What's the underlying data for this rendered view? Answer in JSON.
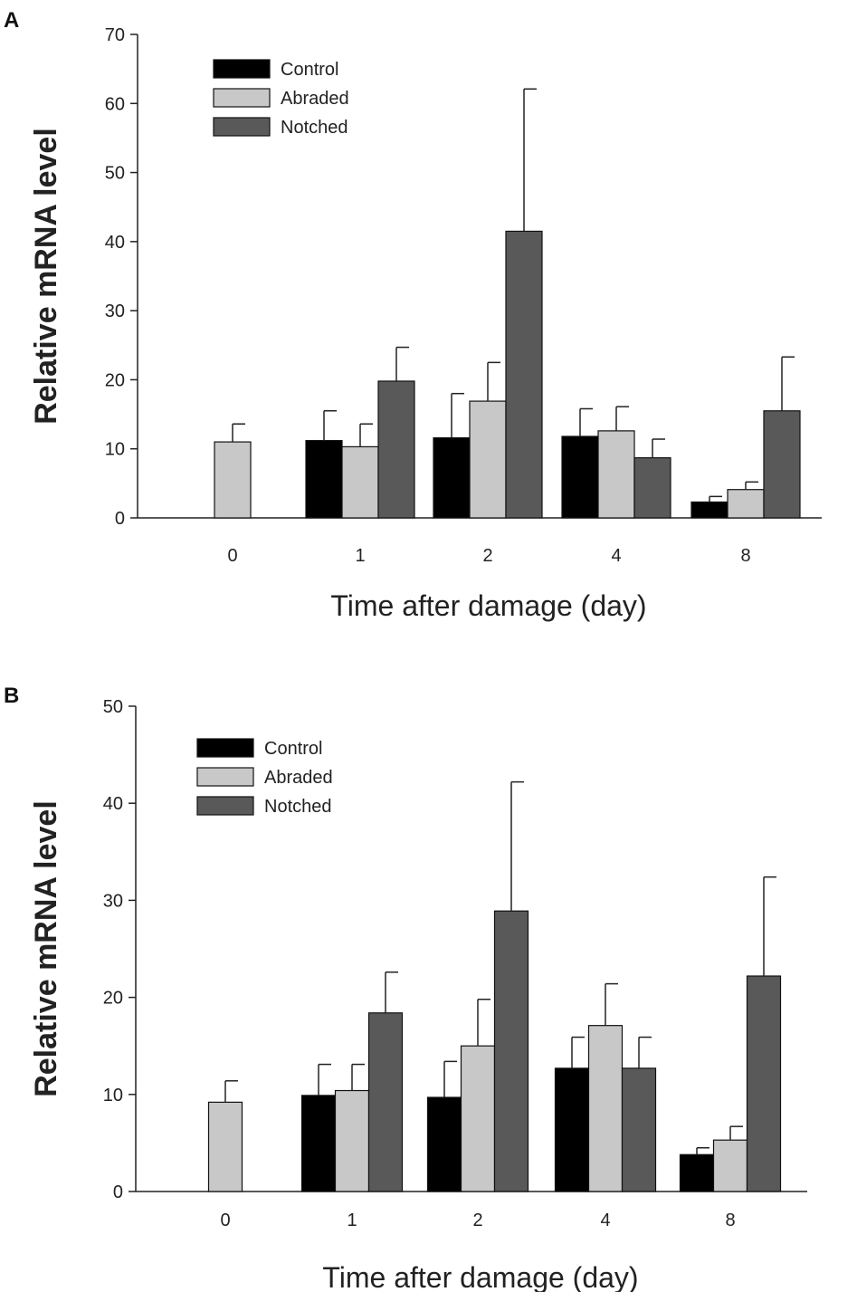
{
  "chart_data": [
    {
      "panel": "A",
      "type": "bar",
      "categories": [
        "0",
        "1",
        "2",
        "4",
        "8"
      ],
      "xlabel": "Time after damage (day)",
      "ylabel": "Relative mRNA level",
      "ylim": [
        0,
        70
      ],
      "yticks": [
        0,
        10,
        20,
        30,
        40,
        50,
        60,
        70
      ],
      "legend_position": "top-left",
      "series": [
        {
          "name": "Control",
          "color": "#000000",
          "values": [
            null,
            11.2,
            11.6,
            11.8,
            2.3
          ],
          "errors": [
            null,
            4.3,
            6.4,
            4.0,
            0.8
          ]
        },
        {
          "name": "Abraded",
          "color": "#c8c8c8",
          "values": [
            11.0,
            10.3,
            16.9,
            12.6,
            4.1
          ],
          "errors": [
            2.6,
            3.3,
            5.6,
            3.5,
            1.1
          ]
        },
        {
          "name": "Notched",
          "color": "#595959",
          "values": [
            null,
            19.8,
            41.5,
            8.7,
            15.5
          ],
          "errors": [
            null,
            4.9,
            20.6,
            2.7,
            7.8
          ]
        }
      ]
    },
    {
      "panel": "B",
      "type": "bar",
      "categories": [
        "0",
        "1",
        "2",
        "4",
        "8"
      ],
      "xlabel": "Time after damage (day)",
      "ylabel": "Relative mRNA level",
      "ylim": [
        0,
        50
      ],
      "yticks": [
        0,
        10,
        20,
        30,
        40,
        50
      ],
      "legend_position": "top-left",
      "series": [
        {
          "name": "Control",
          "color": "#000000",
          "values": [
            null,
            9.9,
            9.7,
            12.7,
            3.8
          ],
          "errors": [
            null,
            3.2,
            3.7,
            3.2,
            0.7
          ]
        },
        {
          "name": "Abraded",
          "color": "#c8c8c8",
          "values": [
            9.2,
            10.4,
            15.0,
            17.1,
            5.3
          ],
          "errors": [
            2.2,
            2.7,
            4.8,
            4.3,
            1.4
          ]
        },
        {
          "name": "Notched",
          "color": "#595959",
          "values": [
            null,
            18.4,
            28.9,
            12.7,
            22.2
          ],
          "errors": [
            null,
            4.2,
            13.3,
            3.2,
            10.2
          ]
        }
      ]
    }
  ]
}
